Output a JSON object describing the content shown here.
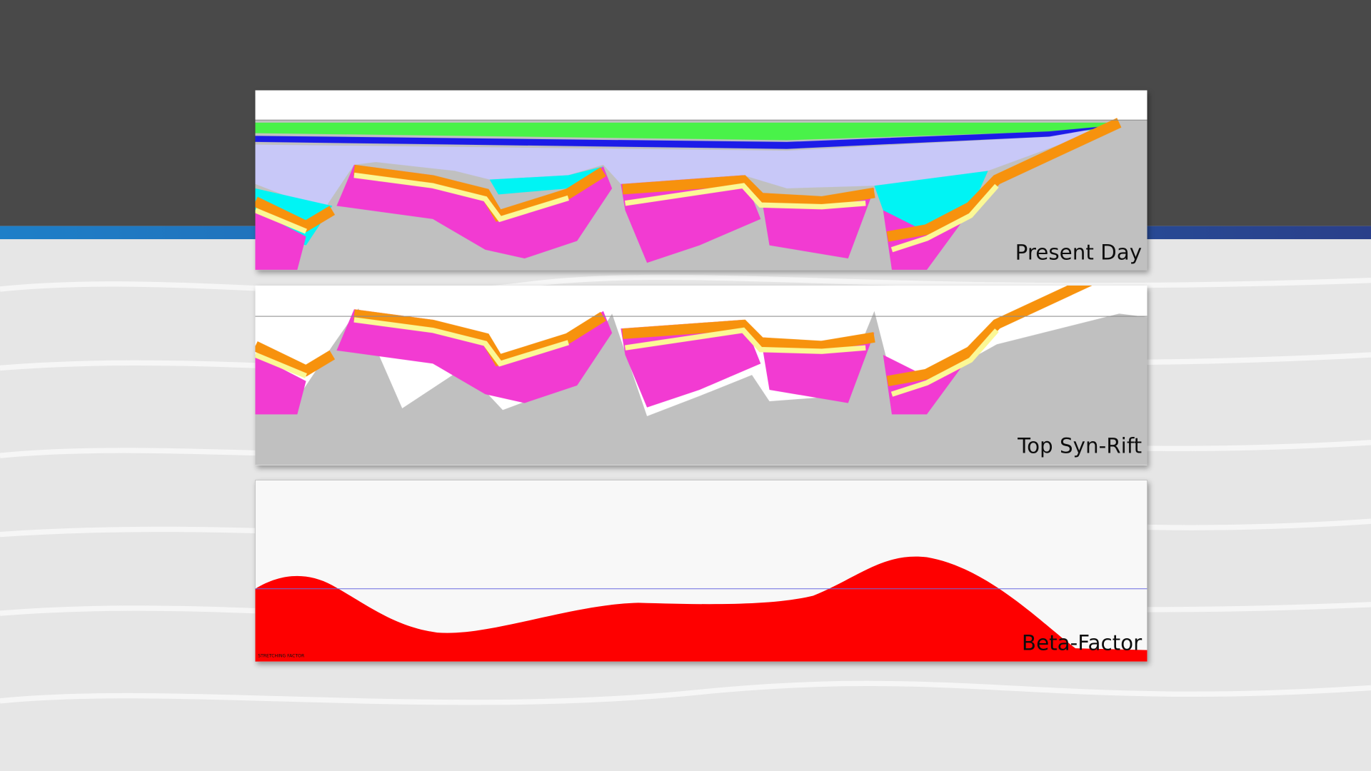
{
  "panels": [
    {
      "label": "Present Day"
    },
    {
      "label": "Top Syn-Rift"
    },
    {
      "label": "Beta-Factor",
      "caption": "STRETCHING FACTOR"
    }
  ]
}
